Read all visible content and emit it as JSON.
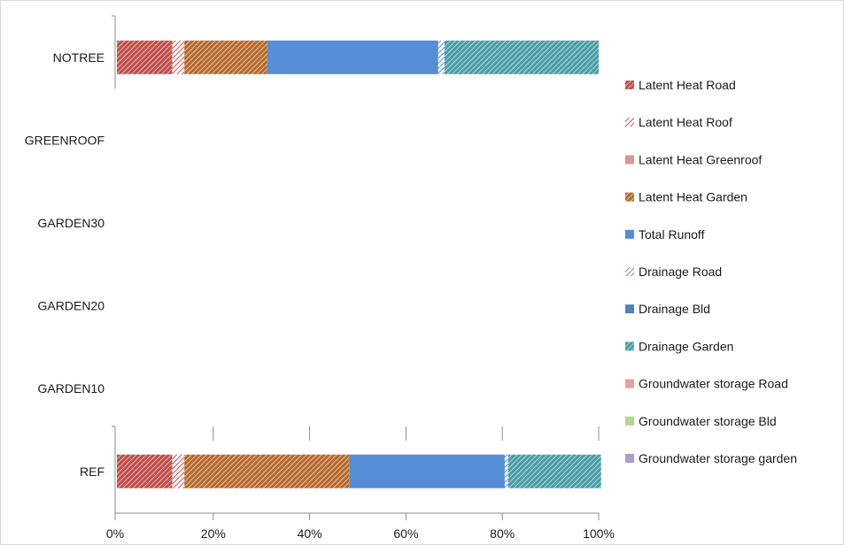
{
  "chart_data": {
    "type": "bar",
    "orientation": "horizontal",
    "stacked": "percent",
    "categories": [
      "NOTREE",
      "GREENROOF",
      "GARDEN30",
      "GARDEN20",
      "GARDEN10",
      "REF"
    ],
    "xlim": [
      0,
      100
    ],
    "x_ticks": [
      "0%",
      "20%",
      "40%",
      "60%",
      "80%",
      "100%"
    ],
    "grid": false,
    "legend_position": "right",
    "series": [
      {
        "name": "Latent Heat Road",
        "color": "#c0504d",
        "pattern": "hatch-dense",
        "values": [
          11.5,
          null,
          null,
          null,
          null,
          11.5
        ]
      },
      {
        "name": "Latent Heat Roof",
        "color": "#c0504d",
        "pattern": "hatch-light",
        "values": [
          2.5,
          null,
          null,
          null,
          null,
          2.5
        ]
      },
      {
        "name": "Latent Heat Greenroof",
        "color": "#d99694",
        "pattern": "solid",
        "values": [
          0,
          null,
          null,
          null,
          null,
          0
        ]
      },
      {
        "name": "Latent Heat Garden",
        "color": "#b86a2e",
        "pattern": "hatch-dense",
        "values": [
          17.2,
          null,
          null,
          null,
          null,
          34.2
        ]
      },
      {
        "name": "Total Runoff",
        "color": "#558ed5",
        "pattern": "solid",
        "values": [
          35.5,
          null,
          null,
          null,
          null,
          32.3
        ]
      },
      {
        "name": "Drainage Road",
        "color": "#558ed5",
        "pattern": "hatch-light",
        "values": [
          1.3,
          null,
          null,
          null,
          null,
          0.7
        ]
      },
      {
        "name": "Drainage Bld",
        "color": "#4f81bd",
        "pattern": "solid",
        "values": [
          0,
          null,
          null,
          null,
          null,
          0
        ]
      },
      {
        "name": "Drainage Garden",
        "color": "#4a9ea6",
        "pattern": "hatch-dense",
        "values": [
          32.0,
          null,
          null,
          null,
          null,
          19.3
        ]
      },
      {
        "name": "Groundwater storage Road",
        "color": "#e6a09e",
        "pattern": "solid",
        "values": [
          0,
          null,
          null,
          null,
          null,
          0
        ]
      },
      {
        "name": "Groundwater storage Bld",
        "color": "#b3d88a",
        "pattern": "solid",
        "values": [
          0,
          null,
          null,
          null,
          null,
          0
        ]
      },
      {
        "name": "Groundwater storage garden",
        "color": "#a89dce",
        "pattern": "solid",
        "values": [
          0,
          null,
          null,
          null,
          null,
          0
        ]
      }
    ]
  }
}
